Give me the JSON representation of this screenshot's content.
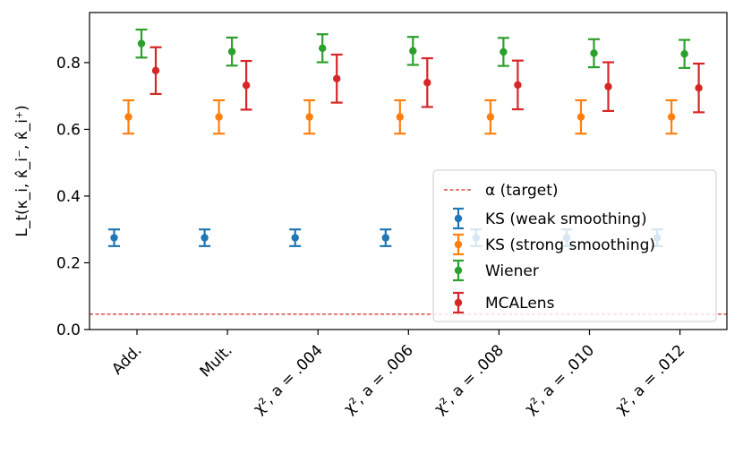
{
  "chart_data": {
    "type": "errorbar",
    "categories": [
      "Add.",
      "Mult.",
      "χ², a = .004",
      "χ², a = .006",
      "χ², a = .008",
      "χ², a = .010",
      "χ², a = .012"
    ],
    "ylabel": "L_t(κ_i, κ̂_i⁻, κ̂_i⁺)",
    "xlabel": "",
    "ylim": [
      0.0,
      0.95
    ],
    "yticks": [
      0.0,
      0.2,
      0.4,
      0.6,
      0.8
    ],
    "ytick_labels": [
      "0.0",
      "0.2",
      "0.4",
      "0.6",
      "0.8"
    ],
    "grid": false,
    "legend_position": "center-right",
    "target": {
      "name": "α (target)",
      "value": 0.046,
      "color": "#d62728",
      "style": "dashed"
    },
    "series": [
      {
        "name": "KS (weak smoothing)",
        "color": "#1f77b4",
        "values": [
          0.275,
          0.275,
          0.275,
          0.275,
          0.275,
          0.275,
          0.275
        ],
        "err_low": [
          0.025,
          0.025,
          0.025,
          0.025,
          0.025,
          0.025,
          0.025
        ],
        "err_high": [
          0.025,
          0.025,
          0.025,
          0.025,
          0.025,
          0.025,
          0.025
        ]
      },
      {
        "name": "KS (strong smoothing)",
        "color": "#ff7f0e",
        "values": [
          0.637,
          0.637,
          0.637,
          0.637,
          0.637,
          0.637,
          0.637
        ],
        "err_low": [
          0.05,
          0.05,
          0.05,
          0.05,
          0.05,
          0.05,
          0.05
        ],
        "err_high": [
          0.05,
          0.05,
          0.05,
          0.05,
          0.05,
          0.05,
          0.05
        ]
      },
      {
        "name": "Wiener",
        "color": "#2ca02c",
        "values": [
          0.857,
          0.833,
          0.843,
          0.835,
          0.832,
          0.828,
          0.826
        ],
        "err_low": [
          0.042,
          0.042,
          0.042,
          0.042,
          0.042,
          0.042,
          0.042
        ],
        "err_high": [
          0.042,
          0.042,
          0.042,
          0.042,
          0.042,
          0.042,
          0.042
        ]
      },
      {
        "name": "MCALens",
        "color": "#d62728",
        "values": [
          0.776,
          0.732,
          0.752,
          0.74,
          0.733,
          0.728,
          0.724
        ],
        "err_low": [
          0.07,
          0.073,
          0.072,
          0.073,
          0.073,
          0.073,
          0.073
        ],
        "err_high": [
          0.07,
          0.073,
          0.072,
          0.073,
          0.073,
          0.073,
          0.073
        ]
      }
    ]
  }
}
